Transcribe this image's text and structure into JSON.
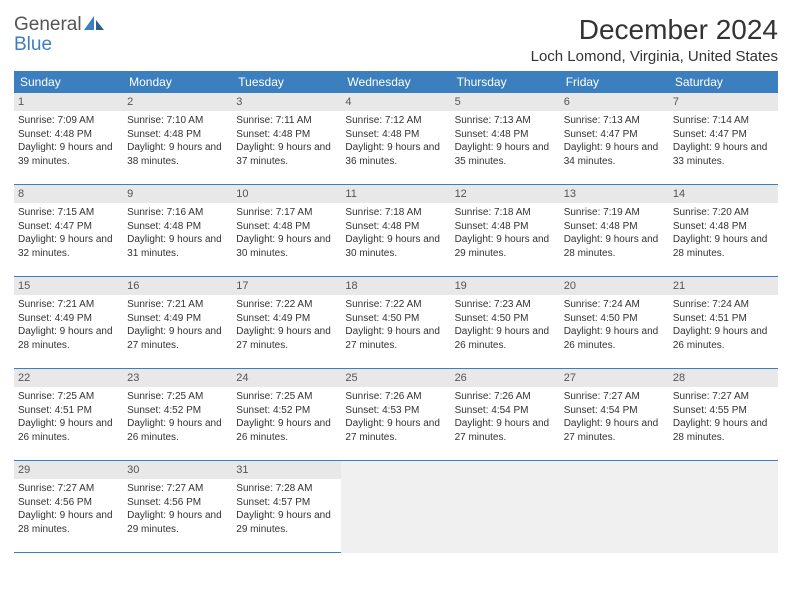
{
  "brand": {
    "part1": "General",
    "part2": "Blue"
  },
  "title": "December 2024",
  "location": "Loch Lomond, Virginia, United States",
  "colors": {
    "header_bg": "#3b7fbf",
    "header_text": "#ffffff",
    "daynum_bg": "#e8e8e8",
    "border": "#3b7fbf",
    "text": "#333333"
  },
  "dayNames": [
    "Sunday",
    "Monday",
    "Tuesday",
    "Wednesday",
    "Thursday",
    "Friday",
    "Saturday"
  ],
  "weeks": [
    [
      {
        "n": "1",
        "sr": "7:09 AM",
        "ss": "4:48 PM",
        "dl": "9 hours and 39 minutes."
      },
      {
        "n": "2",
        "sr": "7:10 AM",
        "ss": "4:48 PM",
        "dl": "9 hours and 38 minutes."
      },
      {
        "n": "3",
        "sr": "7:11 AM",
        "ss": "4:48 PM",
        "dl": "9 hours and 37 minutes."
      },
      {
        "n": "4",
        "sr": "7:12 AM",
        "ss": "4:48 PM",
        "dl": "9 hours and 36 minutes."
      },
      {
        "n": "5",
        "sr": "7:13 AM",
        "ss": "4:48 PM",
        "dl": "9 hours and 35 minutes."
      },
      {
        "n": "6",
        "sr": "7:13 AM",
        "ss": "4:47 PM",
        "dl": "9 hours and 34 minutes."
      },
      {
        "n": "7",
        "sr": "7:14 AM",
        "ss": "4:47 PM",
        "dl": "9 hours and 33 minutes."
      }
    ],
    [
      {
        "n": "8",
        "sr": "7:15 AM",
        "ss": "4:47 PM",
        "dl": "9 hours and 32 minutes."
      },
      {
        "n": "9",
        "sr": "7:16 AM",
        "ss": "4:48 PM",
        "dl": "9 hours and 31 minutes."
      },
      {
        "n": "10",
        "sr": "7:17 AM",
        "ss": "4:48 PM",
        "dl": "9 hours and 30 minutes."
      },
      {
        "n": "11",
        "sr": "7:18 AM",
        "ss": "4:48 PM",
        "dl": "9 hours and 30 minutes."
      },
      {
        "n": "12",
        "sr": "7:18 AM",
        "ss": "4:48 PM",
        "dl": "9 hours and 29 minutes."
      },
      {
        "n": "13",
        "sr": "7:19 AM",
        "ss": "4:48 PM",
        "dl": "9 hours and 28 minutes."
      },
      {
        "n": "14",
        "sr": "7:20 AM",
        "ss": "4:48 PM",
        "dl": "9 hours and 28 minutes."
      }
    ],
    [
      {
        "n": "15",
        "sr": "7:21 AM",
        "ss": "4:49 PM",
        "dl": "9 hours and 28 minutes."
      },
      {
        "n": "16",
        "sr": "7:21 AM",
        "ss": "4:49 PM",
        "dl": "9 hours and 27 minutes."
      },
      {
        "n": "17",
        "sr": "7:22 AM",
        "ss": "4:49 PM",
        "dl": "9 hours and 27 minutes."
      },
      {
        "n": "18",
        "sr": "7:22 AM",
        "ss": "4:50 PM",
        "dl": "9 hours and 27 minutes."
      },
      {
        "n": "19",
        "sr": "7:23 AM",
        "ss": "4:50 PM",
        "dl": "9 hours and 26 minutes."
      },
      {
        "n": "20",
        "sr": "7:24 AM",
        "ss": "4:50 PM",
        "dl": "9 hours and 26 minutes."
      },
      {
        "n": "21",
        "sr": "7:24 AM",
        "ss": "4:51 PM",
        "dl": "9 hours and 26 minutes."
      }
    ],
    [
      {
        "n": "22",
        "sr": "7:25 AM",
        "ss": "4:51 PM",
        "dl": "9 hours and 26 minutes."
      },
      {
        "n": "23",
        "sr": "7:25 AM",
        "ss": "4:52 PM",
        "dl": "9 hours and 26 minutes."
      },
      {
        "n": "24",
        "sr": "7:25 AM",
        "ss": "4:52 PM",
        "dl": "9 hours and 26 minutes."
      },
      {
        "n": "25",
        "sr": "7:26 AM",
        "ss": "4:53 PM",
        "dl": "9 hours and 27 minutes."
      },
      {
        "n": "26",
        "sr": "7:26 AM",
        "ss": "4:54 PM",
        "dl": "9 hours and 27 minutes."
      },
      {
        "n": "27",
        "sr": "7:27 AM",
        "ss": "4:54 PM",
        "dl": "9 hours and 27 minutes."
      },
      {
        "n": "28",
        "sr": "7:27 AM",
        "ss": "4:55 PM",
        "dl": "9 hours and 28 minutes."
      }
    ],
    [
      {
        "n": "29",
        "sr": "7:27 AM",
        "ss": "4:56 PM",
        "dl": "9 hours and 28 minutes."
      },
      {
        "n": "30",
        "sr": "7:27 AM",
        "ss": "4:56 PM",
        "dl": "9 hours and 29 minutes."
      },
      {
        "n": "31",
        "sr": "7:28 AM",
        "ss": "4:57 PM",
        "dl": "9 hours and 29 minutes."
      },
      null,
      null,
      null,
      null
    ]
  ],
  "labels": {
    "sunrise": "Sunrise:",
    "sunset": "Sunset:",
    "daylight": "Daylight:"
  }
}
